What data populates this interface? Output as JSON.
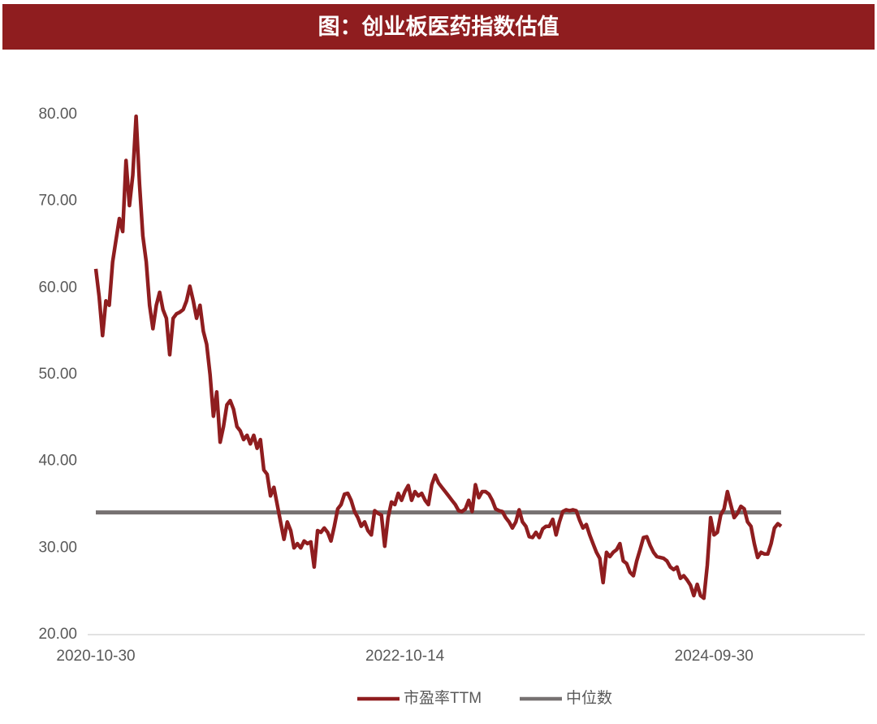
{
  "chart_data": {
    "type": "line",
    "title": "图：创业板医药指数估值",
    "categories": [
      "2020-10-30",
      null,
      null,
      null,
      null,
      null,
      null,
      null,
      null,
      null,
      null,
      null,
      null,
      null,
      null,
      null,
      null,
      null,
      null,
      null,
      null,
      null,
      null,
      null,
      null,
      null,
      null,
      null,
      null,
      null,
      null,
      null,
      null,
      null,
      null,
      null,
      null,
      null,
      null,
      null,
      null,
      null,
      null,
      null,
      null,
      null,
      null,
      null,
      null,
      null,
      null,
      null,
      null,
      null,
      null,
      null,
      null,
      null,
      null,
      null,
      null,
      null,
      null,
      null,
      null,
      null,
      null,
      null,
      null,
      null,
      null,
      null,
      null,
      null,
      null,
      null,
      null,
      null,
      null,
      null,
      null,
      null,
      null,
      null,
      null,
      null,
      null,
      null,
      null,
      null,
      null,
      null,
      "2022-10-14",
      null,
      null,
      null,
      null,
      null,
      null,
      null,
      null,
      null,
      null,
      null,
      null,
      null,
      null,
      null,
      null,
      null,
      null,
      null,
      null,
      null,
      null,
      null,
      null,
      null,
      null,
      null,
      null,
      null,
      null,
      null,
      null,
      null,
      null,
      null,
      null,
      null,
      null,
      null,
      null,
      null,
      null,
      null,
      null,
      null,
      null,
      null,
      null,
      null,
      null,
      null,
      null,
      null,
      null,
      null,
      null,
      null,
      null,
      null,
      null,
      null,
      null,
      null,
      null,
      null,
      null,
      null,
      null,
      null,
      null,
      null,
      null,
      null,
      null,
      null,
      null,
      null,
      null,
      null,
      null,
      null,
      null,
      null,
      null,
      null,
      null,
      null,
      null,
      null,
      null,
      null,
      "2024-09-30",
      null,
      null,
      null,
      null,
      null,
      null,
      null,
      null,
      null,
      null,
      null,
      null,
      null,
      null,
      null,
      null,
      null,
      null,
      null,
      null
    ],
    "series": [
      {
        "name": "市盈率TTM",
        "color": "#8f1d1f",
        "values": [
          62.2,
          59,
          54.5,
          58.5,
          58,
          63,
          65.5,
          68,
          66.5,
          74.7,
          69.5,
          73,
          79.8,
          72,
          66,
          63,
          58,
          55.3,
          58,
          59.5,
          57.5,
          56.5,
          52.3,
          56.5,
          57,
          57.2,
          57.5,
          58.5,
          60.2,
          58.5,
          56.5,
          58,
          55,
          53.5,
          50,
          45.2,
          48,
          42.2,
          44,
          46.5,
          47,
          46,
          44,
          43.5,
          42.5,
          43,
          42,
          43,
          41.5,
          42.5,
          39,
          38.5,
          36,
          37,
          35,
          33,
          31,
          33,
          32,
          30,
          30.5,
          30,
          30.8,
          30.5,
          30.7,
          27.8,
          32,
          31.8,
          32.3,
          31.8,
          30.8,
          32.5,
          34.5,
          35,
          36.2,
          36.3,
          35.5,
          34.2,
          33.5,
          32.5,
          33,
          32,
          31.5,
          34.3,
          34,
          33.8,
          30.2,
          33.5,
          35.3,
          35,
          36.3,
          35.5,
          36.5,
          37.2,
          35.5,
          36.5,
          36,
          36.3,
          35.5,
          35,
          37.3,
          38.4,
          37.5,
          37,
          36.5,
          36,
          35.5,
          35,
          34.3,
          34.2,
          34.5,
          35.5,
          34.2,
          37.3,
          35.8,
          36.5,
          36.5,
          36.2,
          35.5,
          34.5,
          34.3,
          34.2,
          33.5,
          33,
          32.3,
          33,
          34.4,
          33,
          32.5,
          31.3,
          31.2,
          31.8,
          31.2,
          32.2,
          32.5,
          32.5,
          33.3,
          31.5,
          33,
          34.2,
          34.4,
          34.3,
          34.4,
          34.3,
          33.2,
          32.3,
          32.7,
          31.5,
          30.5,
          29.5,
          28.8,
          26,
          29.5,
          29,
          29.5,
          29.8,
          30.5,
          28.5,
          28.2,
          27.2,
          26.8,
          28.5,
          29.8,
          31.2,
          31.3,
          30.3,
          29.5,
          29,
          28.9,
          28.8,
          28.5,
          27.8,
          27.5,
          27.8,
          26.5,
          26.8,
          26.3,
          25.7,
          24.5,
          25.8,
          24.5,
          24.2,
          28,
          33.5,
          31.5,
          31.8,
          33.8,
          34.5,
          36.5,
          35,
          33.5,
          34,
          34.8,
          34.5,
          33,
          32.5,
          30.5,
          28.9,
          29.5,
          29.3,
          29.3,
          30.5,
          32.3,
          32.8,
          32.5
        ]
      }
    ],
    "median": {
      "name": "中位数",
      "color": "#767171",
      "value": 34.1
    },
    "ylim": [
      20,
      80
    ],
    "yticks": [
      {
        "value": 20,
        "label": "20.00"
      },
      {
        "value": 30,
        "label": "30.00"
      },
      {
        "value": 40,
        "label": "40.00"
      },
      {
        "value": 50,
        "label": "50.00"
      },
      {
        "value": 60,
        "label": "60.00"
      },
      {
        "value": 70,
        "label": "70.00"
      },
      {
        "value": 80,
        "label": "80.00"
      }
    ],
    "grid": false
  }
}
